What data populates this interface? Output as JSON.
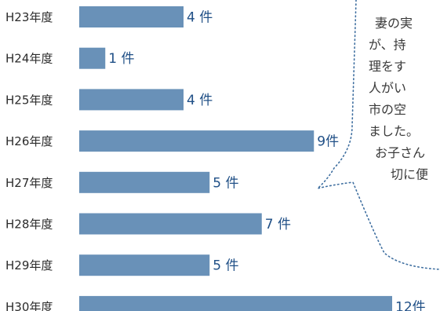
{
  "chart_data": {
    "type": "bar",
    "orientation": "horizontal",
    "categories": [
      "H23年度",
      "H24年度",
      "H25年度",
      "H26年度",
      "H27年度",
      "H28年度",
      "H29年度",
      "H30年度"
    ],
    "values": [
      4,
      1,
      4,
      9,
      5,
      7,
      5,
      12
    ],
    "value_labels": [
      "4 件",
      "1 件",
      "4 件",
      "9件",
      "5 件",
      "7 件",
      "5 件",
      "12件"
    ],
    "xlim": [
      0,
      12
    ],
    "grid": false,
    "legend": "none"
  },
  "callout": {
    "lines": [
      "妻の実",
      "が、持",
      "理をす",
      "人がい",
      "市の空",
      "ました。",
      "お子さん",
      "切に便"
    ]
  },
  "colors": {
    "bar": "#6991b8",
    "value_text": "#1f4f86",
    "callout_border": "#3f6fa0"
  }
}
